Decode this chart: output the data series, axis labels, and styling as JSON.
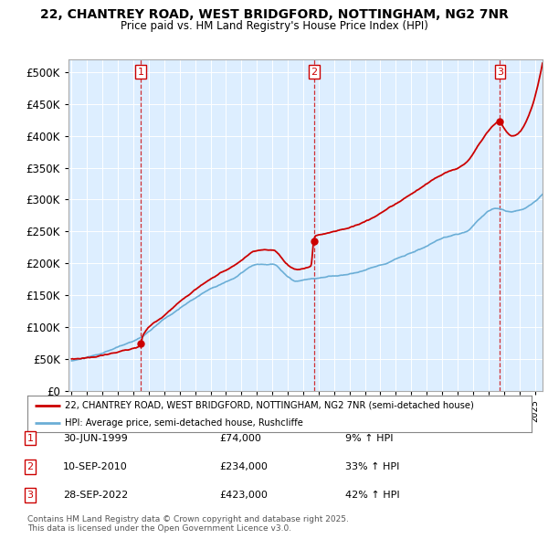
{
  "title": "22, CHANTREY ROAD, WEST BRIDGFORD, NOTTINGHAM, NG2 7NR",
  "subtitle": "Price paid vs. HM Land Registry's House Price Index (HPI)",
  "legend_line1": "22, CHANTREY ROAD, WEST BRIDGFORD, NOTTINGHAM, NG2 7NR (semi-detached house)",
  "legend_line2": "HPI: Average price, semi-detached house, Rushcliffe",
  "footer": "Contains HM Land Registry data © Crown copyright and database right 2025.\nThis data is licensed under the Open Government Licence v3.0.",
  "transactions": [
    {
      "num": 1,
      "date": "30-JUN-1999",
      "price": "£74,000",
      "change": "9% ↑ HPI"
    },
    {
      "num": 2,
      "date": "10-SEP-2010",
      "price": "£234,000",
      "change": "33% ↑ HPI"
    },
    {
      "num": 3,
      "date": "28-SEP-2022",
      "price": "£423,000",
      "change": "42% ↑ HPI"
    }
  ],
  "sale_dates_decimal": [
    1999.496,
    2010.693,
    2022.747
  ],
  "sale_prices": [
    74000,
    234000,
    423000
  ],
  "hpi_color": "#6baed6",
  "price_color": "#cc0000",
  "vline_color": "#cc0000",
  "chart_bg_color": "#ddeeff",
  "background_color": "#ffffff",
  "grid_color": "#ffffff",
  "ylim": [
    0,
    520000
  ],
  "xlim_start": 1994.8,
  "xlim_end": 2025.5
}
